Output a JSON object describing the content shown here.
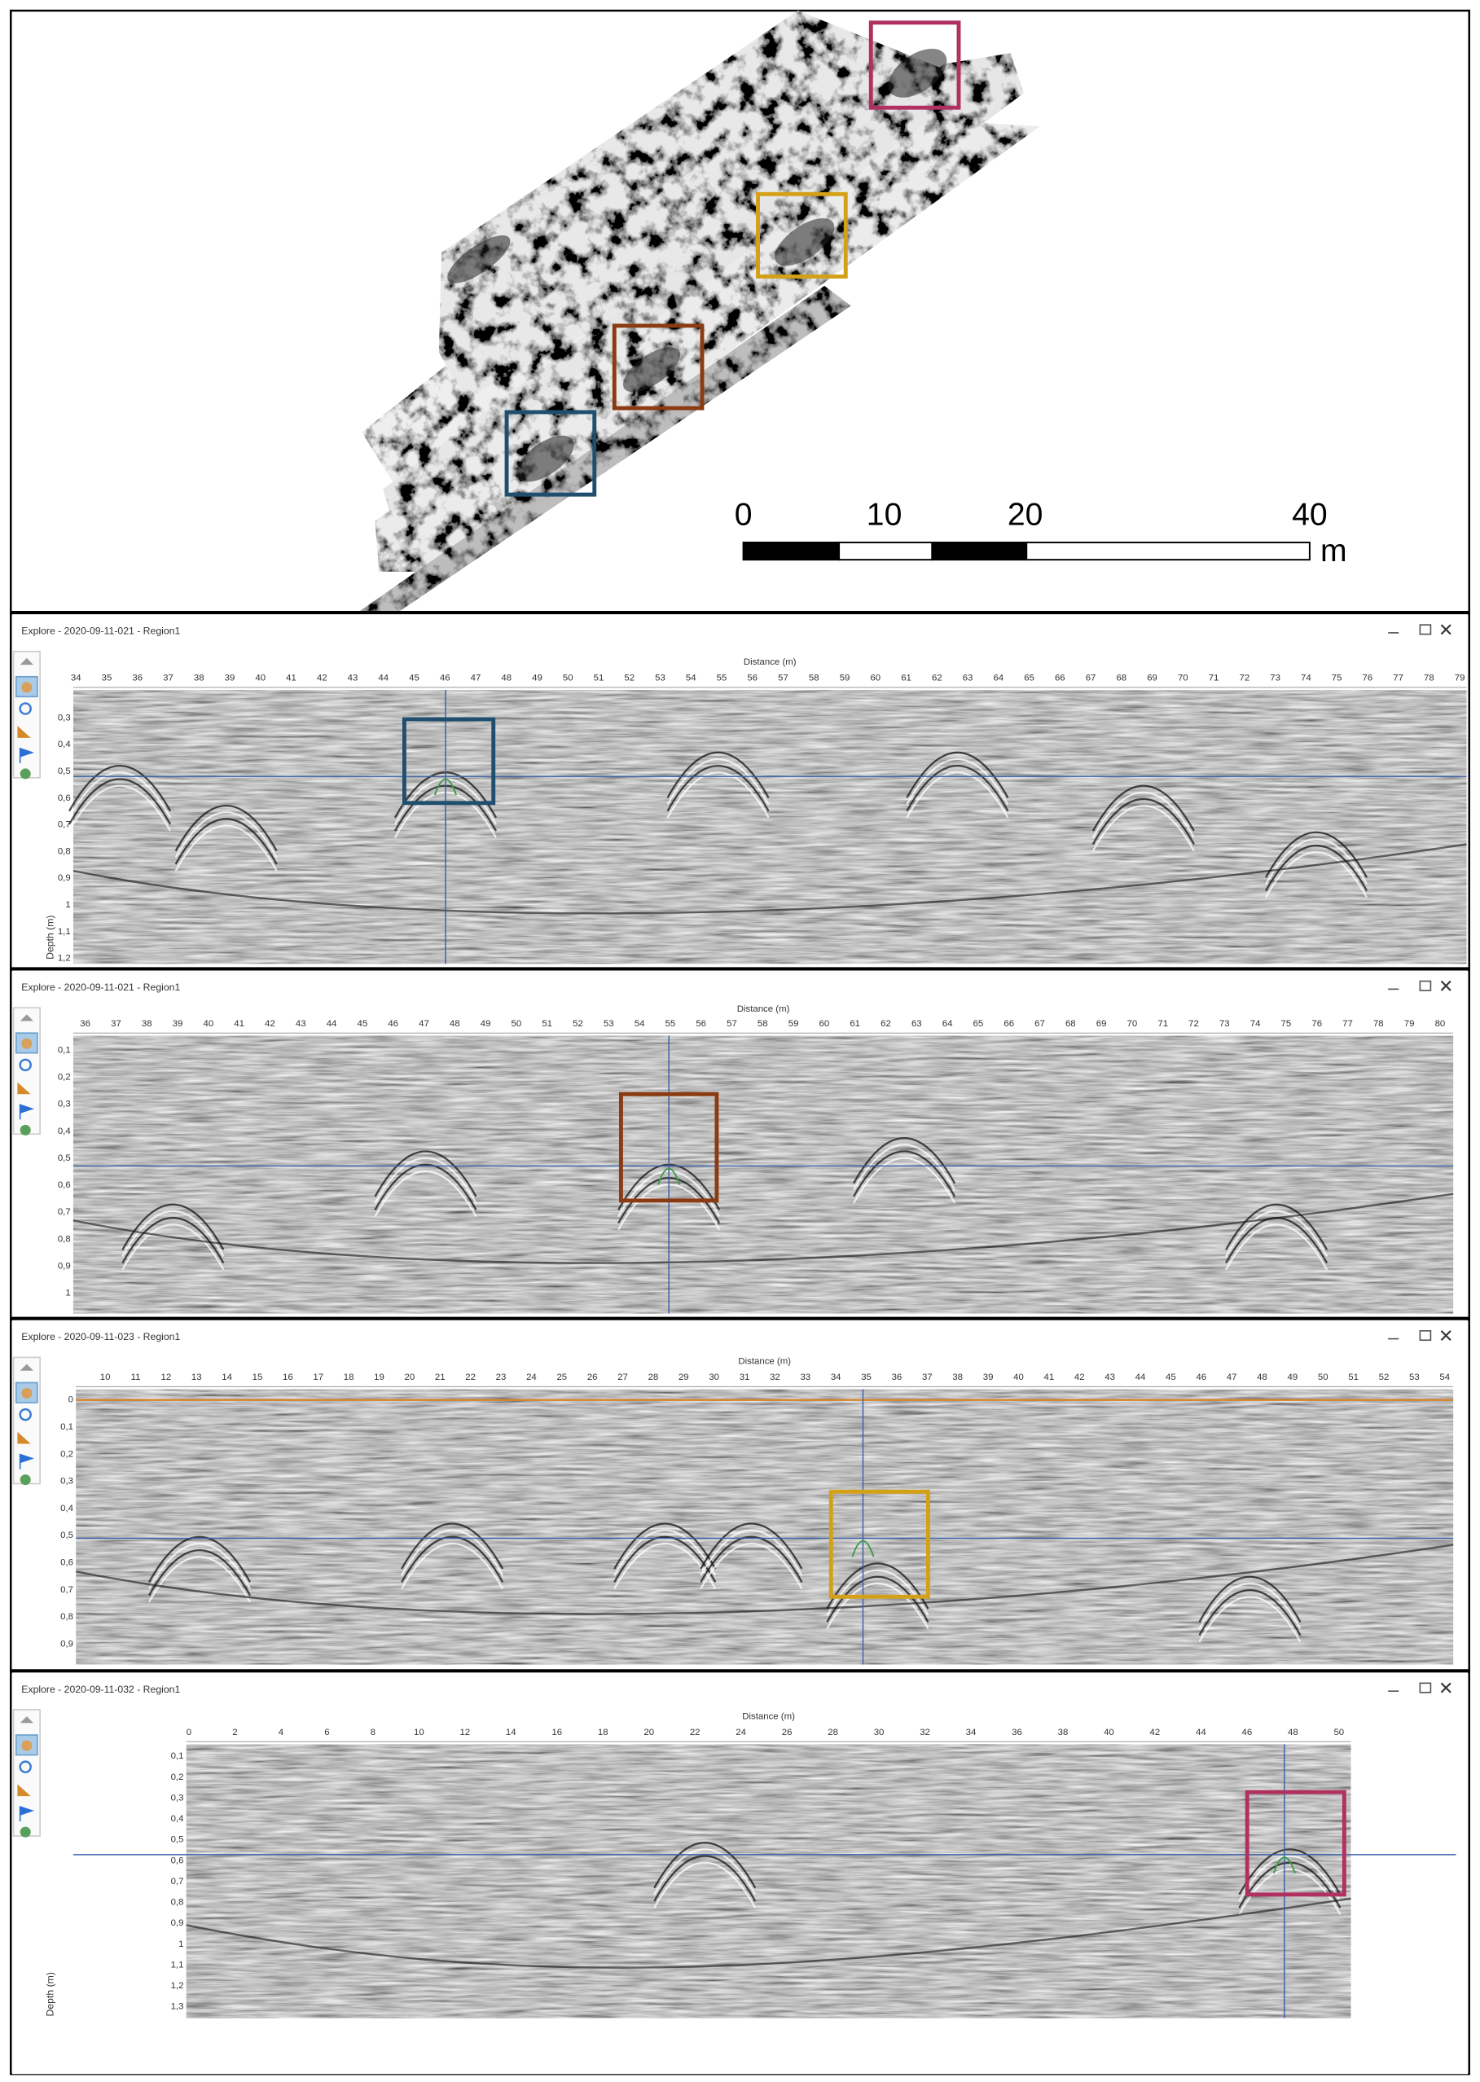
{
  "map": {
    "scale_bar": {
      "labels": [
        "0",
        "10",
        "20",
        "40"
      ],
      "unit": "m"
    }
  },
  "panels": [
    {
      "title": "Explore - 2020-09-11-021 - Region1",
      "x_axis_title": "Distance (m)",
      "x_ticks": [
        34,
        35,
        36,
        37,
        38,
        39,
        40,
        41,
        42,
        43,
        44,
        45,
        46,
        47,
        48,
        49,
        50,
        51,
        52,
        53,
        54,
        55,
        56,
        57,
        58,
        59,
        60,
        61,
        62,
        63,
        64,
        65,
        66,
        67,
        68,
        69,
        70,
        71,
        72,
        73,
        74,
        75,
        76,
        77,
        78,
        79
      ],
      "y_ticks": [
        "0,3",
        "0,4",
        "0,5",
        "0,6",
        "0,7",
        "0,8",
        "0,9",
        "1",
        "1,1",
        "1,2"
      ],
      "y_axis_title": "Depth (m)"
    },
    {
      "title": "Explore - 2020-09-11-021 - Region1",
      "x_axis_title": "Distance (m)",
      "x_ticks": [
        36,
        37,
        38,
        39,
        40,
        41,
        42,
        43,
        44,
        45,
        46,
        47,
        48,
        49,
        50,
        51,
        52,
        53,
        54,
        55,
        56,
        57,
        58,
        59,
        60,
        61,
        62,
        63,
        64,
        65,
        66,
        67,
        68,
        69,
        70,
        71,
        72,
        73,
        74,
        75,
        76,
        77,
        78,
        79,
        80
      ],
      "y_ticks": [
        "0,1",
        "0,2",
        "0,3",
        "0,4",
        "0,5",
        "0,6",
        "0,7",
        "0,8",
        "0,9",
        "1"
      ]
    },
    {
      "title": "Explore - 2020-09-11-023 - Region1",
      "x_axis_title": "Distance (m)",
      "x_ticks": [
        10,
        11,
        12,
        13,
        14,
        15,
        16,
        17,
        18,
        19,
        20,
        21,
        22,
        23,
        24,
        25,
        26,
        27,
        28,
        29,
        30,
        31,
        32,
        33,
        34,
        35,
        36,
        37,
        38,
        39,
        40,
        41,
        42,
        43,
        44,
        45,
        46,
        47,
        48,
        49,
        50,
        51,
        52,
        53,
        54
      ],
      "y_ticks": [
        "0",
        "0,1",
        "0,2",
        "0,3",
        "0,4",
        "0,5",
        "0,6",
        "0,7",
        "0,8",
        "0,9"
      ]
    },
    {
      "title": "Explore - 2020-09-11-032 - Region1",
      "x_axis_title": "Distance (m)",
      "x_ticks": [
        0,
        2,
        4,
        6,
        8,
        10,
        12,
        14,
        16,
        18,
        20,
        22,
        24,
        26,
        28,
        30,
        32,
        34,
        36,
        38,
        40,
        42,
        44,
        46,
        48,
        50
      ],
      "y_ticks": [
        "0,1",
        "0,2",
        "0,3",
        "0,4",
        "0,5",
        "0,6",
        "0,7",
        "0,8",
        "0,9",
        "1",
        "1,1",
        "1,2",
        "1,3"
      ],
      "y_axis_title": "Depth (m)"
    }
  ]
}
